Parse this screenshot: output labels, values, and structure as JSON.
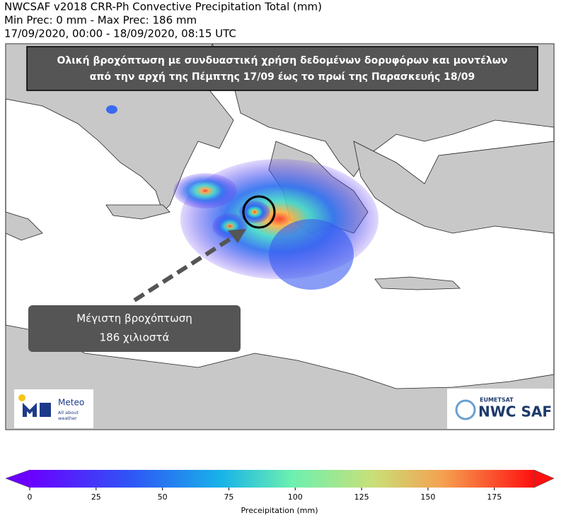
{
  "header": {
    "lines": [
      "NWCSAF v2018 CRR-Ph Convective Precipitation Total (mm)",
      "Min Prec: 0 mm - Max Prec: 186 mm",
      "17/09/2020, 00:00 - 18/09/2020, 08:15 UTC"
    ]
  },
  "banner": {
    "lines": [
      "Ολική βροχόπτωση με συνδυαστική χρήση δεδομένων δορυφόρων και μοντέλων",
      "από την αρχή της Πέμπτης 17/09 έως το πρωί της Παρασκευής 18/09"
    ]
  },
  "callout": {
    "lines": [
      "Μέγιστη βροχόπτωση",
      "186 χιλιοστά"
    ]
  },
  "logos": {
    "meteo": {
      "name": "Meteo",
      "tagline": [
        "All about",
        "weather"
      ]
    },
    "nwcsaf": {
      "org": "EUMETSAT",
      "name": "NWC SAF"
    }
  },
  "colorbar": {
    "label": "Preceipitation (mm)",
    "lim": [
      0,
      190
    ],
    "ticks": [
      0,
      25,
      50,
      75,
      100,
      125,
      150,
      175
    ]
  }
}
